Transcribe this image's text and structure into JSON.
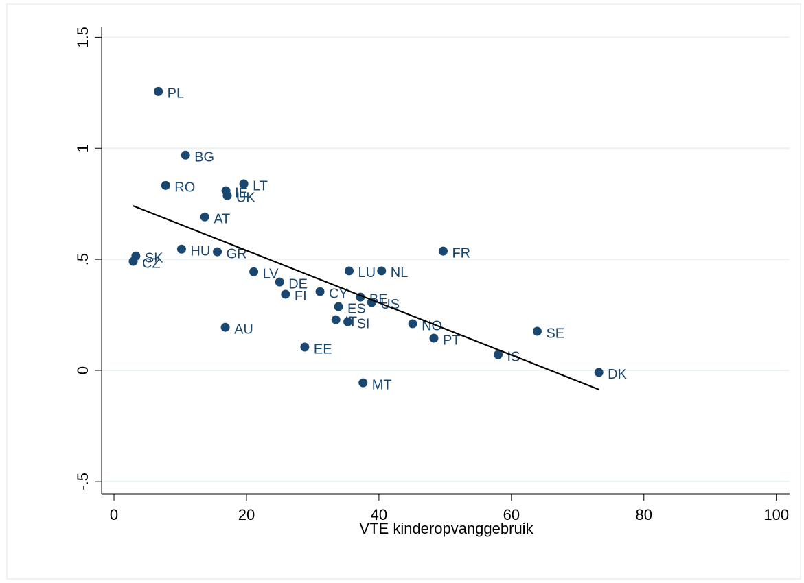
{
  "chart_data": {
    "type": "scatter",
    "xlabel": "VTE kinderopvanggebruik",
    "x": [
      6.7,
      10.8,
      7.8,
      16.9,
      19.6,
      17.1,
      13.7,
      3.3,
      2.9,
      10.2,
      15.6,
      21.1,
      25.0,
      25.9,
      31.1,
      35.5,
      40.4,
      37.2,
      38.9,
      33.9,
      33.5,
      35.3,
      16.8,
      28.8,
      37.6,
      45.1,
      48.3,
      49.7,
      63.9,
      58.0,
      73.2
    ],
    "values": [
      1.256,
      0.969,
      0.833,
      0.809,
      0.84,
      0.787,
      0.691,
      0.515,
      0.491,
      0.546,
      0.534,
      0.444,
      0.398,
      0.343,
      0.355,
      0.448,
      0.448,
      0.33,
      0.306,
      0.287,
      0.228,
      0.219,
      0.194,
      0.105,
      -0.056,
      0.21,
      0.145,
      0.537,
      0.176,
      0.071,
      -0.009
    ],
    "point_labels": [
      "PL",
      "BG",
      "RO",
      "IE",
      "LT",
      "UK",
      "AT",
      "SK",
      "CZ",
      "HU",
      "GR",
      "LV",
      "DE",
      "FI",
      "CY",
      "LU",
      "NL",
      "BE",
      "US",
      "ES",
      "IT",
      "SI",
      "AU",
      "EE",
      "MT",
      "NO",
      "PT",
      "FR",
      "SE",
      "IS",
      "DK"
    ],
    "color": "#1a476f",
    "fit_line": {
      "x": [
        2.9,
        73.2
      ],
      "values": [
        0.741,
        -0.086
      ],
      "color": "#000000"
    },
    "xlim": [
      -1.87,
      102
    ],
    "ylim": [
      -0.556,
      1.6
    ],
    "xticks": [
      0,
      20,
      40,
      60,
      80,
      100
    ],
    "yticks": [
      {
        "value": -0.5,
        "label": "-.5"
      },
      0,
      {
        "value": 0.5,
        "label": ".5"
      },
      1,
      1.5
    ],
    "grid": true
  }
}
